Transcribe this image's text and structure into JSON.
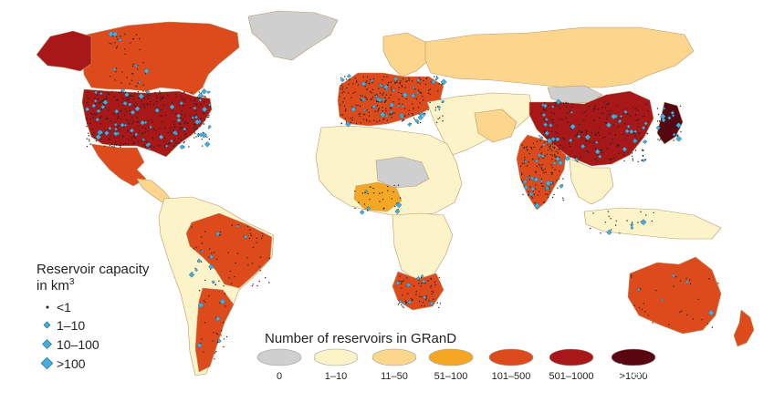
{
  "colors": {
    "ocean": "#ffffff",
    "c0": "#cfcfcf",
    "c1_10": "#fdf3c8",
    "c11_50": "#fbd68c",
    "c51_100": "#f5a623",
    "c101_500": "#dd4a1c",
    "c501_1000": "#a81818",
    "c_gt1000": "#5a0610",
    "dot": "#46aedd",
    "dot_stroke": "#1b5e85",
    "small_dot": "#222222"
  },
  "capacity_legend": {
    "title_line1": "Reservoir capacity",
    "title_line2": "in km",
    "title_sup": "3",
    "items": [
      "<1",
      "1–10",
      "10–100",
      ">100"
    ]
  },
  "count_legend": {
    "title": "Number of reservoirs in GRanD",
    "items": [
      {
        "label": "0",
        "color": "#cfcfcf"
      },
      {
        "label": "1–10",
        "color": "#fdf3c8"
      },
      {
        "label": "11–50",
        "color": "#fbd68c"
      },
      {
        "label": "51–100",
        "color": "#f5a623"
      },
      {
        "label": "101–500",
        "color": "#dd4a1c"
      },
      {
        "label": "501–1000",
        "color": "#a81818"
      },
      {
        "label": ">1000",
        "color": "#5a0610"
      }
    ]
  },
  "watermark": "知乎 @Hydro90",
  "regions": [
    {
      "name": "greenland",
      "cat": "c0"
    },
    {
      "name": "alaska",
      "cat": "c501_1000"
    },
    {
      "name": "canada",
      "cat": "c101_500"
    },
    {
      "name": "usa",
      "cat": "c501_1000"
    },
    {
      "name": "mexico",
      "cat": "c101_500"
    },
    {
      "name": "central-america",
      "cat": "c11_50"
    },
    {
      "name": "south-america",
      "cat": "c1_10"
    },
    {
      "name": "brazil",
      "cat": "c101_500"
    },
    {
      "name": "argentina",
      "cat": "c101_500"
    },
    {
      "name": "europe",
      "cat": "c101_500"
    },
    {
      "name": "scandinavia",
      "cat": "c11_50"
    },
    {
      "name": "russia",
      "cat": "c11_50"
    },
    {
      "name": "north-africa",
      "cat": "c1_10"
    },
    {
      "name": "sahara-gap",
      "cat": "c0"
    },
    {
      "name": "nigeria",
      "cat": "c51_100"
    },
    {
      "name": "central-africa",
      "cat": "c1_10"
    },
    {
      "name": "south-africa",
      "cat": "c101_500"
    },
    {
      "name": "middle-east",
      "cat": "c1_10"
    },
    {
      "name": "iran",
      "cat": "c11_50"
    },
    {
      "name": "india",
      "cat": "c101_500"
    },
    {
      "name": "china",
      "cat": "c501_1000"
    },
    {
      "name": "mongolia",
      "cat": "c0"
    },
    {
      "name": "japan",
      "cat": "c_gt1000"
    },
    {
      "name": "se-asia",
      "cat": "c1_10"
    },
    {
      "name": "indonesia",
      "cat": "c1_10"
    },
    {
      "name": "australia",
      "cat": "c101_500"
    },
    {
      "name": "new-zealand",
      "cat": "c101_500"
    }
  ]
}
